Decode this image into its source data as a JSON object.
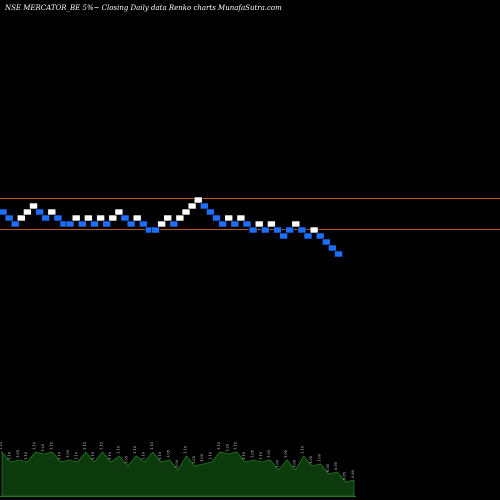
{
  "chart_data": {
    "type": "renko",
    "title": "NSE MERCATOR_BE 5%~  Closing Daily data  Renko  charts MunafaSutra.com",
    "colors": {
      "background": "#000000",
      "up_brick": "#ffffff",
      "down_brick": "#1e6fff",
      "brick_edge": "#000000",
      "reference_line": "#b85a14",
      "volume_fill": "#0d3a0d",
      "volume_line": "#1f7a1f"
    },
    "reference_lines": [
      1.25,
      1.06
    ],
    "bricks": [
      {
        "v": 1.1,
        "d": "down"
      },
      {
        "v": 1.05,
        "d": "down"
      },
      {
        "v": 1.0,
        "d": "down"
      },
      {
        "v": 1.05,
        "d": "up"
      },
      {
        "v": 1.1,
        "d": "up"
      },
      {
        "v": 1.15,
        "d": "up"
      },
      {
        "v": 1.1,
        "d": "down"
      },
      {
        "v": 1.05,
        "d": "down"
      },
      {
        "v": 1.1,
        "d": "up"
      },
      {
        "v": 1.05,
        "d": "down"
      },
      {
        "v": 1.0,
        "d": "down"
      },
      {
        "v": 1.0,
        "d": "down"
      },
      {
        "v": 1.05,
        "d": "up"
      },
      {
        "v": 1.0,
        "d": "down"
      },
      {
        "v": 1.05,
        "d": "up"
      },
      {
        "v": 1.0,
        "d": "down"
      },
      {
        "v": 1.05,
        "d": "up"
      },
      {
        "v": 1.0,
        "d": "down"
      },
      {
        "v": 1.05,
        "d": "up"
      },
      {
        "v": 1.1,
        "d": "up"
      },
      {
        "v": 1.05,
        "d": "down"
      },
      {
        "v": 1.0,
        "d": "down"
      },
      {
        "v": 1.05,
        "d": "up"
      },
      {
        "v": 1.0,
        "d": "down"
      },
      {
        "v": 0.95,
        "d": "down"
      },
      {
        "v": 0.95,
        "d": "down"
      },
      {
        "v": 1.0,
        "d": "up"
      },
      {
        "v": 1.05,
        "d": "up"
      },
      {
        "v": 1.0,
        "d": "down"
      },
      {
        "v": 1.05,
        "d": "up"
      },
      {
        "v": 1.1,
        "d": "up"
      },
      {
        "v": 1.15,
        "d": "up"
      },
      {
        "v": 1.2,
        "d": "up"
      },
      {
        "v": 1.15,
        "d": "down"
      },
      {
        "v": 1.1,
        "d": "down"
      },
      {
        "v": 1.05,
        "d": "down"
      },
      {
        "v": 1.0,
        "d": "down"
      },
      {
        "v": 1.05,
        "d": "up"
      },
      {
        "v": 1.0,
        "d": "down"
      },
      {
        "v": 1.05,
        "d": "up"
      },
      {
        "v": 1.0,
        "d": "down"
      },
      {
        "v": 0.95,
        "d": "down"
      },
      {
        "v": 1.0,
        "d": "up"
      },
      {
        "v": 0.95,
        "d": "down"
      },
      {
        "v": 1.0,
        "d": "up"
      },
      {
        "v": 0.95,
        "d": "down"
      },
      {
        "v": 0.9,
        "d": "down"
      },
      {
        "v": 0.95,
        "d": "down"
      },
      {
        "v": 1.0,
        "d": "up"
      },
      {
        "v": 0.95,
        "d": "down"
      },
      {
        "v": 0.9,
        "d": "down"
      },
      {
        "v": 0.95,
        "d": "up"
      },
      {
        "v": 0.9,
        "d": "down"
      },
      {
        "v": 0.85,
        "d": "down"
      },
      {
        "v": 0.8,
        "d": "down"
      },
      {
        "v": 0.75,
        "d": "down"
      }
    ],
    "volume_labels": [
      "1.15",
      "1.10",
      "1.05",
      "1.10",
      "1.15",
      "1.20",
      "1.15",
      "1.10",
      "1.05",
      "1.10",
      "1.15",
      "1.10",
      "1.15",
      "1.10",
      "1.10",
      "1.05",
      "1.10",
      "1.10",
      "1.15",
      "1.10",
      "1.05",
      "1.00",
      "1.10",
      "1.05",
      "1.00",
      "1.10",
      "1.15",
      "1.20",
      "1.15",
      "1.10",
      "1.05",
      "1.10",
      "1.05",
      "1.00",
      "1.05",
      "1.00",
      "1.10",
      "1.05",
      "1.00",
      "0.95",
      "0.90",
      "0.85",
      "0.80"
    ]
  }
}
